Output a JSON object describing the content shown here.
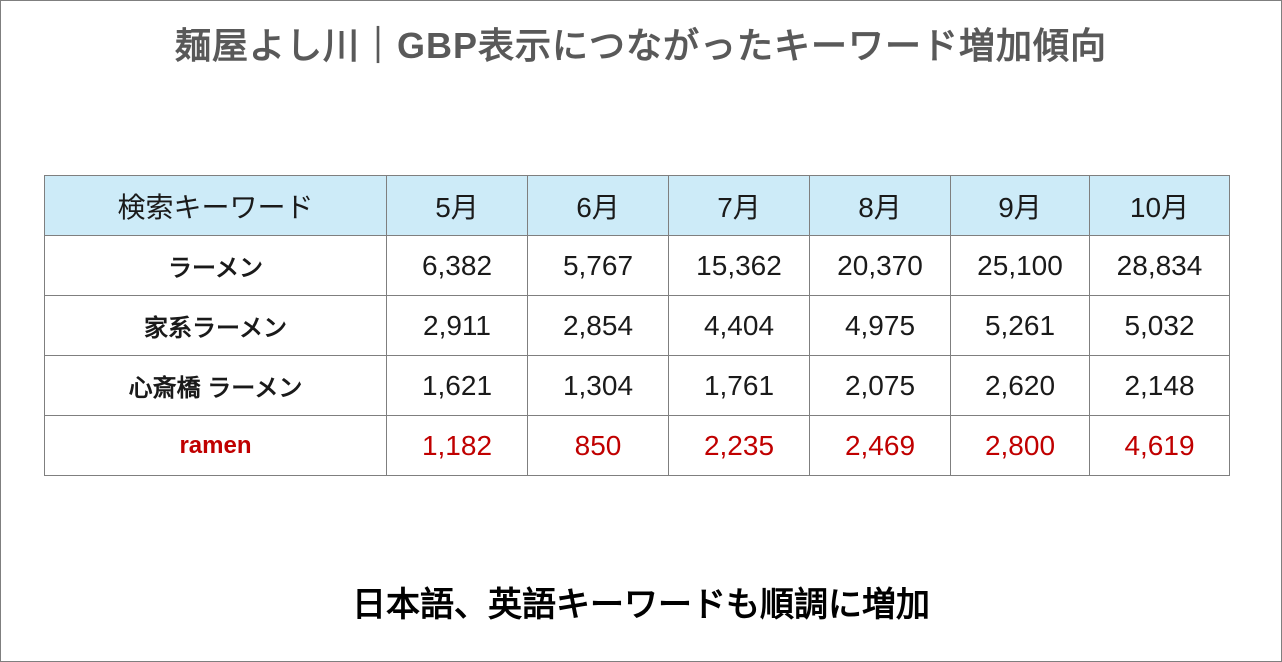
{
  "header": {
    "title": "麺屋よし川｜GBP表示につながったキーワード増加傾向"
  },
  "table": {
    "columns": [
      "検索キーワード",
      "5月",
      "6月",
      "7月",
      "8月",
      "9月",
      "10月"
    ],
    "rows": [
      [
        "ラーメン",
        "6,382",
        "5,767",
        "15,362",
        "20,370",
        "25,100",
        "28,834"
      ],
      [
        "家系ラーメン",
        "2,911",
        "2,854",
        "4,404",
        "4,975",
        "5,261",
        "5,032"
      ],
      [
        "心斎橋 ラーメン",
        "1,621",
        "1,304",
        "1,761",
        "2,075",
        "2,620",
        "2,148"
      ],
      [
        "ramen",
        "1,182",
        "850",
        "2,235",
        "2,469",
        "2,800",
        "4,619"
      ]
    ]
  },
  "footer": {
    "text": "日本語、英語キーワードも順調に増加"
  }
}
